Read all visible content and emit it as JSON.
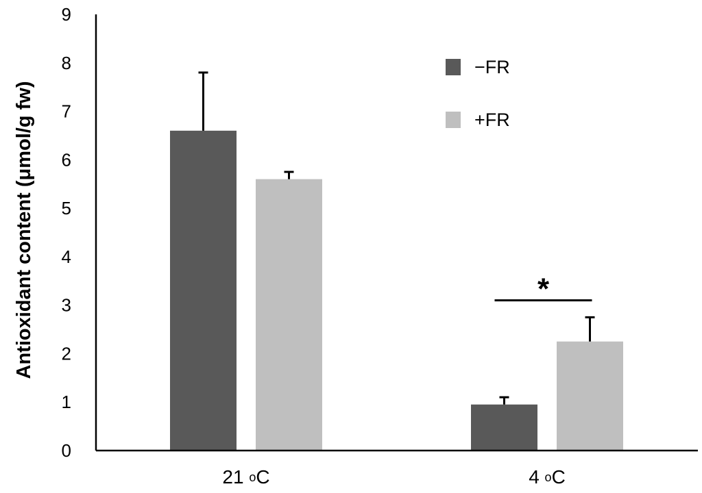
{
  "chart_data": {
    "type": "bar",
    "title": "",
    "xlabel": "",
    "ylabel": "Antioxidant content (μmol/g fw)",
    "ylim": [
      0,
      9
    ],
    "yticks": [
      "0",
      "1",
      "2",
      "3",
      "4",
      "5",
      "6",
      "7",
      "8",
      "9"
    ],
    "grid": false,
    "legend_position": "top-right",
    "categories": [
      {
        "prefix": "21 ",
        "sup": "o",
        "suffix": "C"
      },
      {
        "prefix": "4 ",
        "sup": "o",
        "suffix": "C"
      }
    ],
    "series": [
      {
        "name": "−FR",
        "color": "#595959",
        "values": [
          6.6,
          0.95
        ],
        "errors": [
          1.2,
          0.15
        ]
      },
      {
        "name": "+FR",
        "color": "#bfbfbf",
        "values": [
          5.6,
          2.25
        ],
        "errors": [
          0.15,
          0.5
        ]
      }
    ],
    "annotations": [
      {
        "text": "*",
        "category_index": 1,
        "y_line": 3.1
      }
    ]
  }
}
